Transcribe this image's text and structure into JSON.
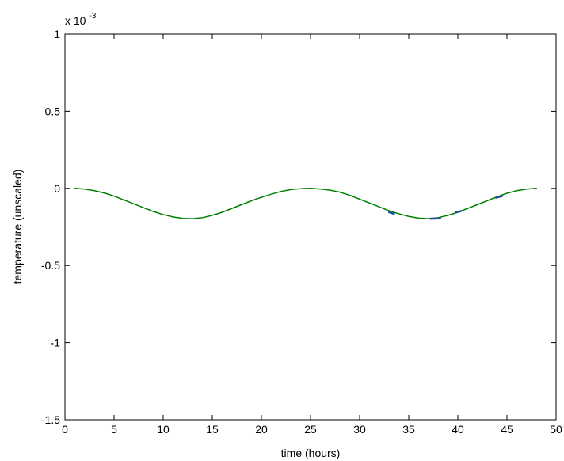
{
  "chart_data": {
    "type": "line",
    "xlabel": "time (hours)",
    "ylabel": "temperature (unscaled)",
    "y_multiplier": {
      "base": "x 10",
      "exponent": "-3"
    },
    "xlim": [
      0,
      50
    ],
    "ylim": [
      -1.5,
      1
    ],
    "x_ticks": [
      0,
      5,
      10,
      15,
      20,
      25,
      30,
      35,
      40,
      45,
      50
    ],
    "x_tick_labels": [
      "0",
      "5",
      "10",
      "15",
      "20",
      "25",
      "30",
      "35",
      "40",
      "45",
      "50"
    ],
    "y_ticks": [
      -1.5,
      -1,
      -0.5,
      0,
      0.5,
      1
    ],
    "y_tick_labels": [
      "-1.5",
      "-1",
      "-0.5",
      "0",
      "0.5",
      "1"
    ],
    "grid": false,
    "legend": "none",
    "series": [
      {
        "color": "#008000",
        "x": [
          1,
          2,
          3,
          4,
          5,
          6,
          7,
          8,
          9,
          10,
          11,
          12,
          13,
          14,
          15,
          16,
          17,
          18,
          19,
          20,
          21,
          22,
          23,
          24,
          25,
          26,
          27,
          28,
          29,
          30,
          31,
          32,
          33,
          34,
          35,
          36,
          37,
          38,
          39,
          40,
          41,
          42,
          43,
          44,
          45,
          46,
          47,
          48
        ],
        "y": [
          0,
          -0.005,
          -0.015,
          -0.03,
          -0.05,
          -0.075,
          -0.1,
          -0.125,
          -0.15,
          -0.17,
          -0.185,
          -0.195,
          -0.197,
          -0.19,
          -0.175,
          -0.155,
          -0.13,
          -0.105,
          -0.08,
          -0.058,
          -0.038,
          -0.02,
          -0.008,
          -0.002,
          0,
          -0.004,
          -0.012,
          -0.025,
          -0.045,
          -0.07,
          -0.095,
          -0.12,
          -0.145,
          -0.165,
          -0.182,
          -0.193,
          -0.197,
          -0.19,
          -0.175,
          -0.155,
          -0.13,
          -0.105,
          -0.08,
          -0.055,
          -0.032,
          -0.015,
          -0.005,
          0
        ]
      },
      {
        "color": "#1f4e9e",
        "x": [
          33,
          33.5
        ],
        "y": [
          -0.155,
          -0.165
        ]
      },
      {
        "color": "#1f4e9e",
        "x": [
          37.2,
          38.2
        ],
        "y": [
          -0.197,
          -0.195
        ]
      },
      {
        "color": "#1f4e9e",
        "x": [
          39.8,
          40.3
        ],
        "y": [
          -0.155,
          -0.148
        ]
      },
      {
        "color": "#1f4e9e",
        "x": [
          43.9,
          44.5
        ],
        "y": [
          -0.06,
          -0.05
        ]
      }
    ]
  }
}
